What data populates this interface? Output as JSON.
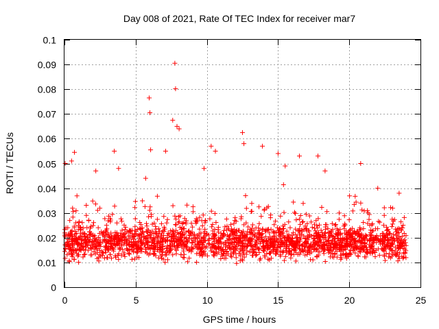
{
  "chart_data": {
    "type": "scatter",
    "title": "Day 008 of 2021, Rate Of TEC Index for receiver mar7",
    "xlabel": "GPS time / hours",
    "ylabel": "ROTI / TECUs",
    "xlim": [
      0,
      25
    ],
    "ylim": [
      0,
      0.1
    ],
    "x_ticks": [
      "0",
      "5",
      "10",
      "15",
      "20",
      "25"
    ],
    "y_ticks": [
      "0",
      "0.01",
      "0.02",
      "0.03",
      "0.04",
      "0.05",
      "0.06",
      "0.07",
      "0.08",
      "0.09",
      "0.1"
    ],
    "grid": true,
    "marker": "+",
    "color": "#ff0000",
    "series": [
      {
        "name": "ROTI",
        "description": "dense cloud of ROTI samples from 0 to 24 h, mostly between 0.005 and 0.035 TECU/min",
        "x_range": [
          0,
          24
        ],
        "typical_range": [
          0.008,
          0.028
        ],
        "notable_points": [
          {
            "x": 0.05,
            "y": 0.05
          },
          {
            "x": 0.5,
            "y": 0.051
          },
          {
            "x": 0.7,
            "y": 0.0545
          },
          {
            "x": 2.2,
            "y": 0.047
          },
          {
            "x": 3.5,
            "y": 0.055
          },
          {
            "x": 3.8,
            "y": 0.048
          },
          {
            "x": 5.7,
            "y": 0.044
          },
          {
            "x": 5.95,
            "y": 0.0765
          },
          {
            "x": 6.0,
            "y": 0.0705
          },
          {
            "x": 6.05,
            "y": 0.0555
          },
          {
            "x": 7.1,
            "y": 0.055
          },
          {
            "x": 7.6,
            "y": 0.0675
          },
          {
            "x": 7.75,
            "y": 0.0905
          },
          {
            "x": 7.8,
            "y": 0.0802
          },
          {
            "x": 7.9,
            "y": 0.065
          },
          {
            "x": 8.05,
            "y": 0.064
          },
          {
            "x": 9.8,
            "y": 0.048
          },
          {
            "x": 10.3,
            "y": 0.057
          },
          {
            "x": 10.6,
            "y": 0.055
          },
          {
            "x": 12.5,
            "y": 0.0625
          },
          {
            "x": 12.6,
            "y": 0.058
          },
          {
            "x": 13.9,
            "y": 0.057
          },
          {
            "x": 15.0,
            "y": 0.054
          },
          {
            "x": 15.5,
            "y": 0.049
          },
          {
            "x": 16.5,
            "y": 0.053
          },
          {
            "x": 17.8,
            "y": 0.053
          },
          {
            "x": 18.3,
            "y": 0.047
          },
          {
            "x": 20.8,
            "y": 0.05
          },
          {
            "x": 22.0,
            "y": 0.04
          },
          {
            "x": 23.5,
            "y": 0.038
          }
        ]
      }
    ]
  }
}
